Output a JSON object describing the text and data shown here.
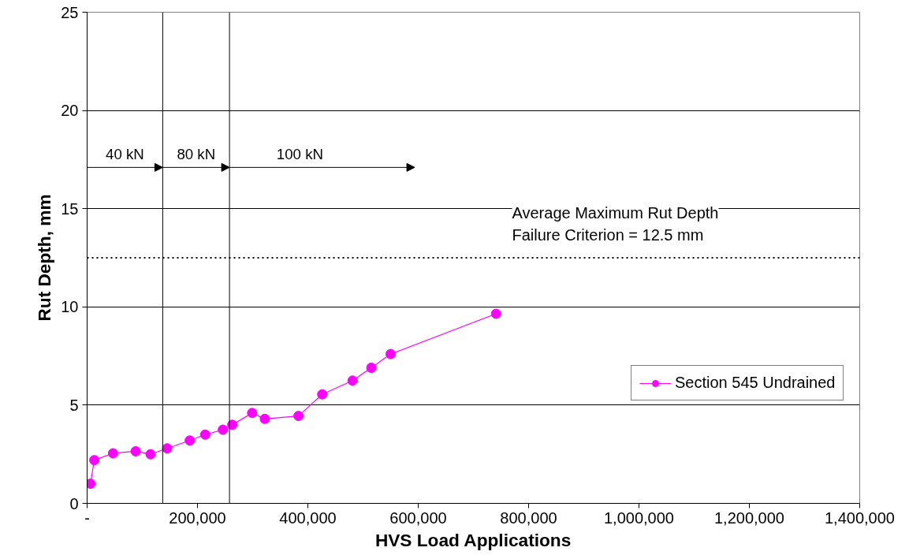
{
  "chart_data": {
    "type": "line",
    "xlabel": "HVS Load Applications",
    "ylabel": "Rut Depth, mm",
    "x": [
      6000,
      13000,
      47000,
      88000,
      115000,
      145000,
      186000,
      214000,
      246000,
      263000,
      299000,
      322000,
      383000,
      426000,
      481000,
      515000,
      550000,
      741000
    ],
    "series": [
      {
        "name": "Section 545 Undrained",
        "color": "#ff00ff",
        "values": [
          1.0,
          2.2,
          2.55,
          2.65,
          2.5,
          2.8,
          3.2,
          3.5,
          3.75,
          4.0,
          4.6,
          4.3,
          4.45,
          5.55,
          6.25,
          6.9,
          7.6,
          9.65
        ]
      }
    ],
    "marker": "circle",
    "line_style": "solid",
    "xlim": [
      0,
      1400000
    ],
    "ylim": [
      0,
      25
    ],
    "xticks": [
      {
        "value": 0,
        "label": "-"
      },
      {
        "value": 200000,
        "label": "200,000"
      },
      {
        "value": 400000,
        "label": "400,000"
      },
      {
        "value": 600000,
        "label": "600,000"
      },
      {
        "value": 800000,
        "label": "800,000"
      },
      {
        "value": 1000000,
        "label": "1,000,000"
      },
      {
        "value": 1200000,
        "label": "1,200,000"
      },
      {
        "value": 1400000,
        "label": "1,400,000"
      }
    ],
    "yticks": [
      0,
      5,
      10,
      15,
      20,
      25
    ],
    "grid": "y",
    "legend": "right",
    "ref_lines": [
      {
        "axis": "y",
        "value": 12.5,
        "label": "Average Maximum Rut Depth\nFailure Criterion = 12.5 mm",
        "line_style": "dotted",
        "color": "#000000"
      },
      {
        "axis": "x",
        "value": 137000,
        "label": null,
        "color": "#000000"
      },
      {
        "axis": "x",
        "value": 258000,
        "label": null,
        "color": "#000000"
      }
    ],
    "annotations": [
      "40 kN",
      "80 kN",
      "100 kN"
    ]
  }
}
